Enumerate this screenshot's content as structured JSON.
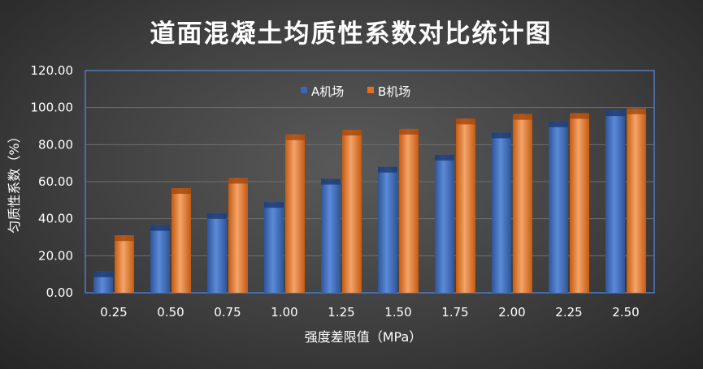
{
  "chart_data": {
    "type": "bar",
    "title": "道面混凝土均质性系数对比统计图",
    "xlabel": "强度差限值（MPa）",
    "ylabel": "匀质性系数（%）",
    "ylim": [
      0,
      120
    ],
    "yticks": [
      "0.00",
      "20.00",
      "40.00",
      "60.00",
      "80.00",
      "100.00",
      "120.00"
    ],
    "categories": [
      "0.25",
      "0.50",
      "0.75",
      "1.00",
      "1.25",
      "1.50",
      "1.75",
      "2.00",
      "2.25",
      "2.50"
    ],
    "series": [
      {
        "name": "A机场",
        "color": "#4472c4",
        "values": [
          11.5,
          36.5,
          43.0,
          49.0,
          61.5,
          68.0,
          74.5,
          86.5,
          92.5,
          98.5
        ]
      },
      {
        "name": "B机场",
        "color": "#ed7d31",
        "values": [
          31.0,
          56.5,
          62.0,
          85.5,
          88.0,
          88.5,
          94.0,
          96.5,
          97.0,
          99.5
        ]
      }
    ],
    "legend_position": "top-center",
    "grid": true
  }
}
